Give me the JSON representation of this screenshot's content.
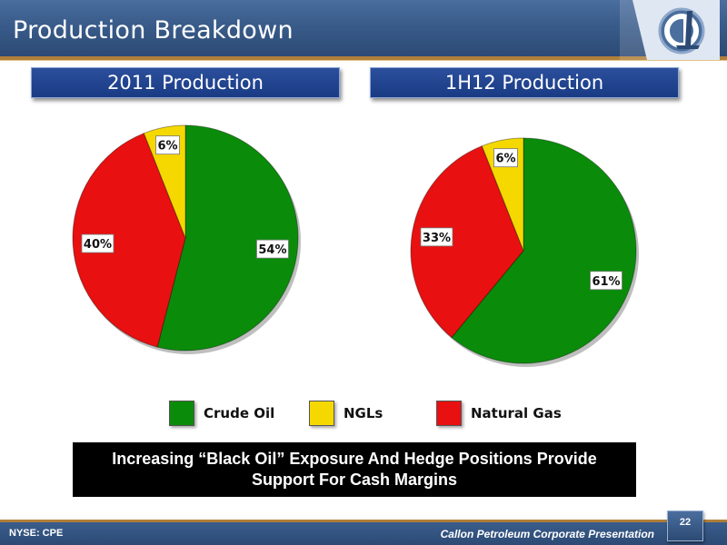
{
  "header": {
    "title": "Production Breakdown"
  },
  "colors": {
    "crude_oil": "#0a8c0a",
    "ngls": "#f5d800",
    "natural_gas": "#e81010",
    "header_blue": "#3a5d8c",
    "section_blue": "#1e3f88",
    "accent_gold": "#b07f3a"
  },
  "legend": [
    {
      "label": "Crude Oil",
      "color": "#0a8c0a"
    },
    {
      "label": "NGLs",
      "color": "#f5d800"
    },
    {
      "label": "Natural Gas",
      "color": "#e81010"
    }
  ],
  "chart_data": [
    {
      "type": "pie",
      "title": "2011 Production",
      "categories": [
        "Crude Oil",
        "NGLs",
        "Natural Gas"
      ],
      "values": [
        54,
        6,
        40
      ],
      "labels": [
        "54%",
        "6%",
        "40%"
      ]
    },
    {
      "type": "pie",
      "title": "1H12 Production",
      "categories": [
        "Crude Oil",
        "NGLs",
        "Natural Gas"
      ],
      "values": [
        61,
        6,
        33
      ],
      "labels": [
        "61%",
        "6%",
        "33%"
      ]
    }
  ],
  "callout": {
    "text": "Increasing “Black Oil” Exposure And Hedge Positions Provide Support For Cash Margins"
  },
  "footer": {
    "left": "NYSE: CPE",
    "right": "Callon Petroleum Corporate Presentation",
    "page": "22"
  }
}
